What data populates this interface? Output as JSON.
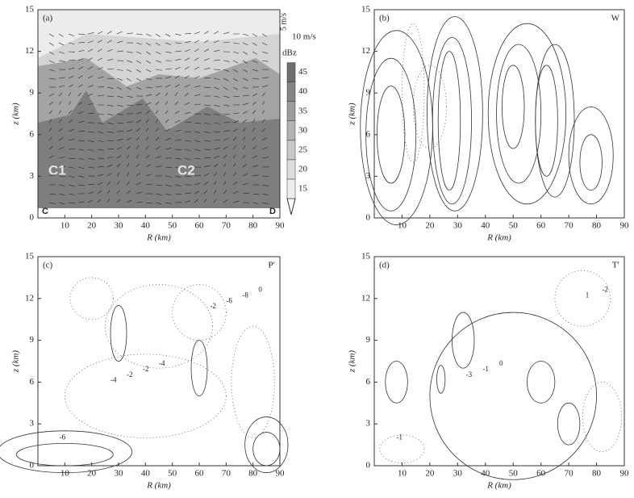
{
  "chart_data": [
    {
      "type": "contour",
      "title": "(a)",
      "xlabel": "R (km)",
      "ylabel": "z (km)",
      "xlim": [
        0,
        90
      ],
      "xticks": [
        10,
        20,
        30,
        40,
        50,
        60,
        70,
        80,
        90
      ],
      "ylim": [
        0,
        15
      ],
      "yticks": [
        0,
        3,
        6,
        9,
        12,
        15
      ],
      "colorbar": {
        "label": "dBz",
        "lim": [
          10,
          47
        ],
        "ticks": [
          15,
          20,
          25,
          30,
          35,
          40,
          45
        ]
      },
      "vector_labels": [
        "5 m/s",
        "10 m/s"
      ],
      "annotations": [
        "C1",
        "C2",
        "C",
        "D"
      ]
    },
    {
      "type": "contour",
      "title": "(b)",
      "variable": "W",
      "xlabel": "R (km)",
      "ylabel": "z (km)",
      "xlim": [
        0,
        90
      ],
      "xticks": [
        10,
        20,
        30,
        40,
        50,
        60,
        70,
        80,
        90
      ],
      "ylim": [
        0,
        15
      ],
      "yticks": [
        0,
        3,
        6,
        9,
        12,
        15
      ]
    },
    {
      "type": "contour",
      "title": "(c)",
      "variable": "P′",
      "xlabel": "R (km)",
      "ylabel": "z (km)",
      "xlim": [
        0,
        90
      ],
      "xticks": [
        10,
        20,
        30,
        40,
        50,
        60,
        70,
        80,
        90
      ],
      "ylim": [
        0,
        15
      ],
      "yticks": [
        0,
        3,
        6,
        9,
        12,
        15
      ],
      "contour_labels": [
        -6,
        -4,
        0,
        -2,
        -8,
        -2,
        -6,
        -4,
        -2
      ]
    },
    {
      "type": "contour",
      "title": "(d)",
      "variable": "T′",
      "xlabel": "R (km)",
      "ylabel": "z (km)",
      "xlim": [
        0,
        90
      ],
      "xticks": [
        10,
        20,
        30,
        40,
        50,
        60,
        70,
        80,
        90
      ],
      "ylim": [
        0,
        15
      ],
      "yticks": [
        0,
        3,
        6,
        9,
        12,
        15
      ],
      "contour_labels": [
        -1,
        0,
        -2,
        -1,
        1,
        -3
      ]
    }
  ]
}
